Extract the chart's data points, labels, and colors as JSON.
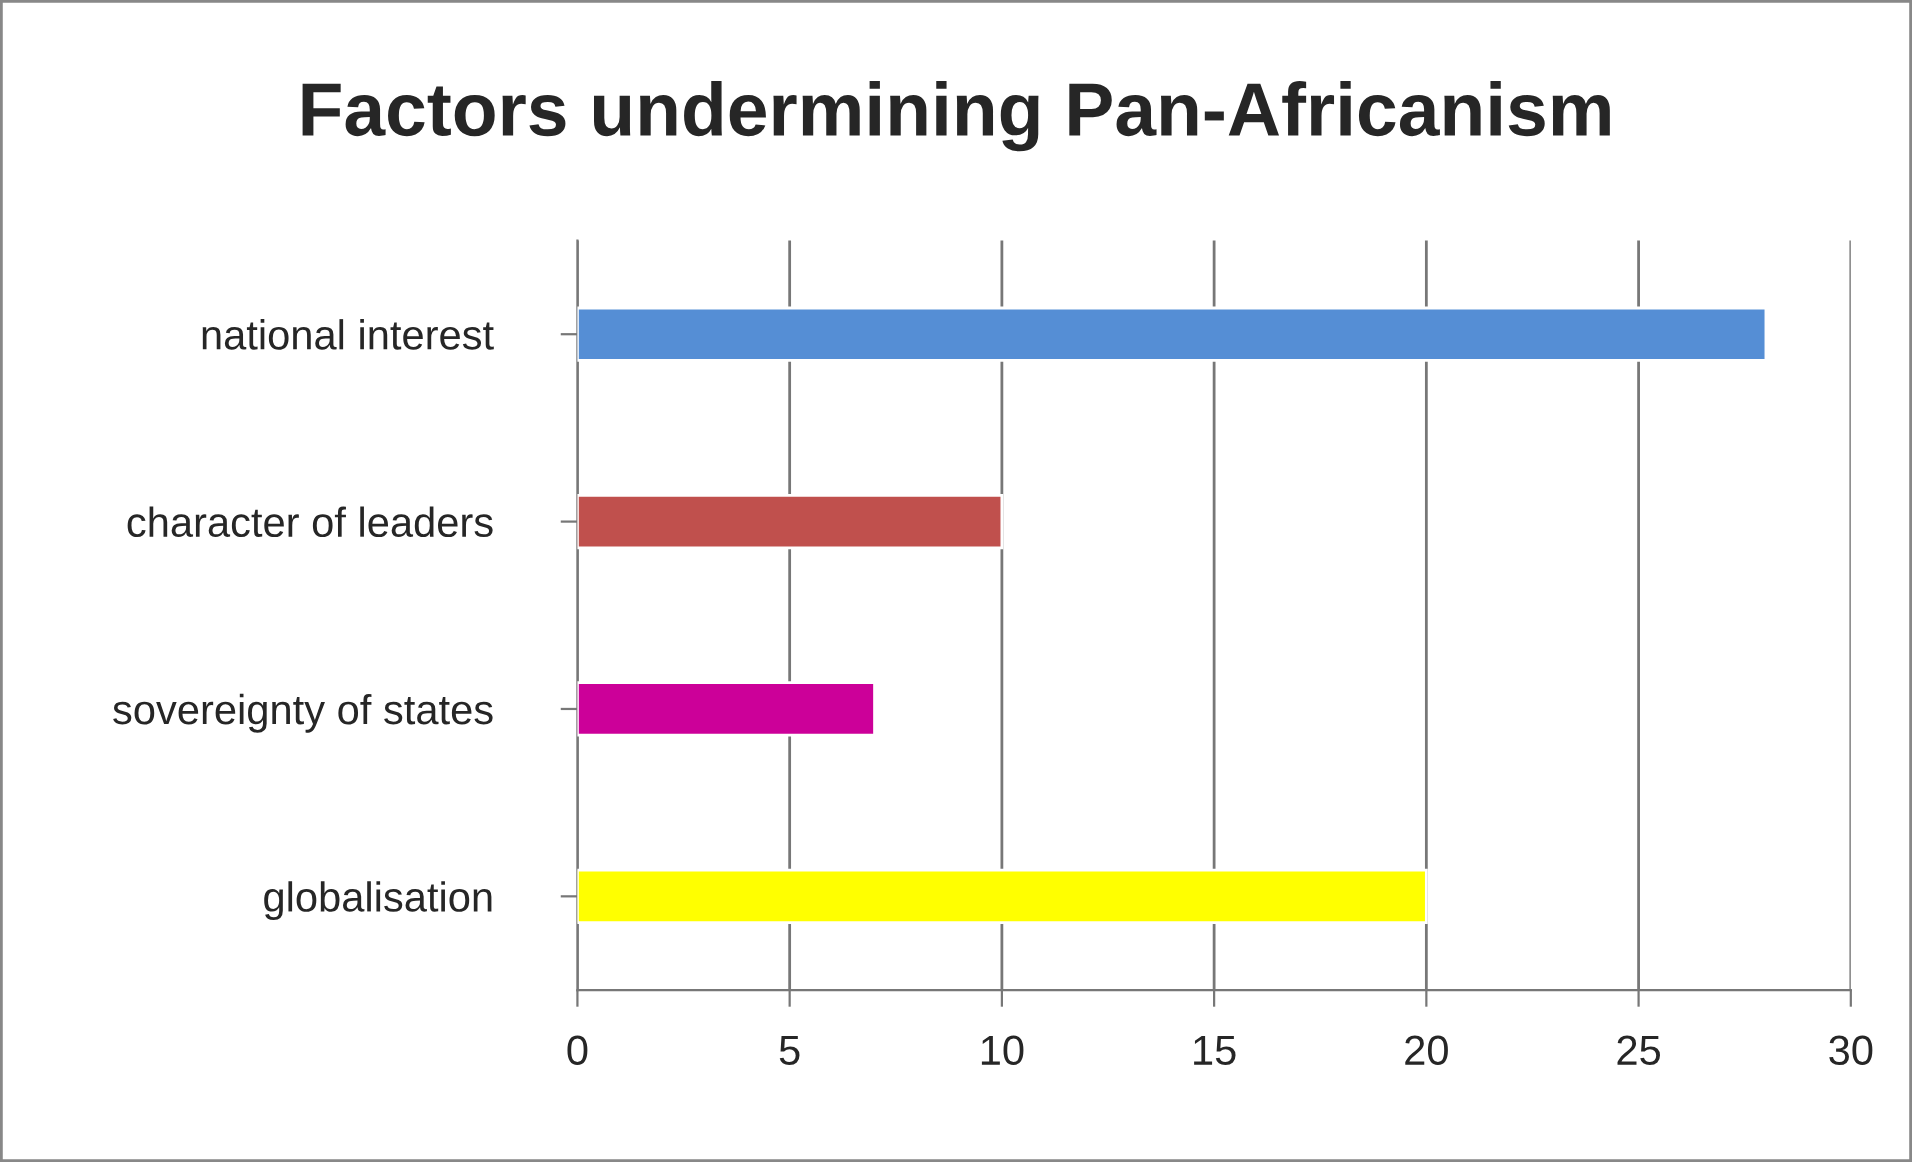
{
  "chart_data": {
    "type": "bar",
    "orientation": "horizontal",
    "title": "Factors undermining Pan-Africanism",
    "categories": [
      "national interest",
      "character of leaders",
      "sovereignty of states",
      "globalisation"
    ],
    "values": [
      28,
      10,
      7,
      20
    ],
    "colors": [
      "#558ed5",
      "#c0504d",
      "#cc0099",
      "#ffff00"
    ],
    "xlim": [
      0,
      30
    ],
    "xticks": [
      0,
      5,
      10,
      15,
      20,
      25,
      30
    ],
    "grid": "x",
    "legend": false
  }
}
